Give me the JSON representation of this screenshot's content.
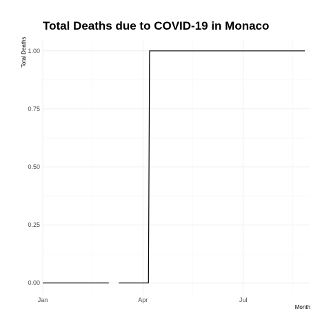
{
  "chart_data": {
    "type": "line",
    "title": "Total Deaths due to COVID-19 in Monaco",
    "xlabel": "Month",
    "ylabel": "Total Deaths",
    "x_type": "date",
    "xlim": [
      "2020-01-01",
      "2020-08-31"
    ],
    "ylim": [
      -0.05,
      1.05
    ],
    "x_ticks": [
      {
        "date": "2020-01-01",
        "label": "Jan"
      },
      {
        "date": "2020-04-01",
        "label": "Apr"
      },
      {
        "date": "2020-07-01",
        "label": "Jul"
      }
    ],
    "y_ticks": [
      {
        "value": 0,
        "label": "0.00"
      },
      {
        "value": 0.25,
        "label": "0.25"
      },
      {
        "value": 0.5,
        "label": "0.50"
      },
      {
        "value": 0.75,
        "label": "0.75"
      },
      {
        "value": 1,
        "label": "1.00"
      }
    ],
    "grid": true,
    "series": [
      {
        "segments": [
          [
            {
              "x": "2020-01-01",
              "y": 0
            },
            {
              "x": "2020-03-01",
              "y": 0
            }
          ],
          [
            {
              "x": "2020-03-10",
              "y": 0
            },
            {
              "x": "2020-04-06",
              "y": 0
            },
            {
              "x": "2020-04-07",
              "y": 1
            },
            {
              "x": "2020-08-26",
              "y": 1
            }
          ]
        ],
        "color": "#000000"
      }
    ]
  }
}
